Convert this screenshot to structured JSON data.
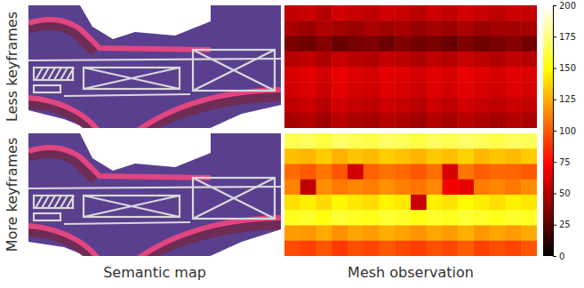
{
  "chart_data": {
    "type": "heatmap",
    "panel_titles": [
      "Semantic map",
      "Mesh observation"
    ],
    "colorbar_range": [
      0,
      200
    ],
    "colorbar_ticks": [
      0,
      25,
      50,
      75,
      100,
      125,
      150,
      175,
      200
    ],
    "series": [
      {
        "name": "Less keyframes",
        "cells": [
          [
            55,
            58,
            52,
            60,
            56,
            54,
            59,
            57,
            53,
            58,
            55,
            60,
            57,
            54,
            58,
            56
          ],
          [
            48,
            45,
            50,
            47,
            44,
            49,
            46,
            48,
            43,
            47,
            45,
            49,
            44,
            47,
            46,
            48
          ],
          [
            35,
            32,
            38,
            30,
            34,
            36,
            31,
            37,
            33,
            35,
            30,
            36,
            32,
            34,
            38,
            33
          ],
          [
            52,
            55,
            50,
            57,
            53,
            51,
            56,
            54,
            50,
            55,
            52,
            57,
            54,
            51,
            55,
            53
          ],
          [
            62,
            65,
            60,
            67,
            63,
            61,
            66,
            64,
            60,
            65,
            62,
            67,
            64,
            61,
            65,
            63
          ],
          [
            60,
            63,
            58,
            65,
            61,
            59,
            64,
            62,
            58,
            63,
            60,
            65,
            62,
            59,
            63,
            61
          ],
          [
            55,
            58,
            53,
            60,
            56,
            54,
            59,
            57,
            53,
            58,
            55,
            60,
            57,
            54,
            58,
            56
          ],
          [
            48,
            51,
            46,
            53,
            49,
            47,
            52,
            50,
            46,
            51,
            48,
            53,
            50,
            47,
            51,
            49
          ]
        ]
      },
      {
        "name": "More keyframes",
        "cells": [
          [
            165,
            168,
            162,
            170,
            166,
            164,
            169,
            167,
            163,
            168,
            165,
            170,
            167,
            164,
            168,
            166
          ],
          [
            130,
            128,
            134,
            126,
            132,
            129,
            135,
            131,
            127,
            133,
            130,
            136,
            128,
            132,
            129,
            134
          ],
          [
            105,
            100,
            108,
            98,
            60,
            102,
            107,
            104,
            99,
            106,
            62,
            108,
            101,
            104,
            103,
            100
          ],
          [
            112,
            55,
            115,
            109,
            113,
            110,
            116,
            111,
            108,
            114,
            70,
            66,
            110,
            113,
            109,
            115
          ],
          [
            140,
            145,
            138,
            147,
            142,
            139,
            146,
            143,
            58,
            145,
            141,
            148,
            144,
            140,
            145,
            142
          ],
          [
            155,
            158,
            152,
            160,
            156,
            154,
            159,
            157,
            153,
            158,
            155,
            160,
            157,
            154,
            158,
            156
          ],
          [
            120,
            118,
            124,
            116,
            122,
            119,
            125,
            121,
            117,
            123,
            120,
            126,
            118,
            122,
            119,
            124
          ],
          [
            95,
            92,
            98,
            90,
            96,
            93,
            99,
            94,
            91,
            97,
            94,
            100,
            92,
            96,
            93,
            98
          ]
        ]
      }
    ]
  }
}
